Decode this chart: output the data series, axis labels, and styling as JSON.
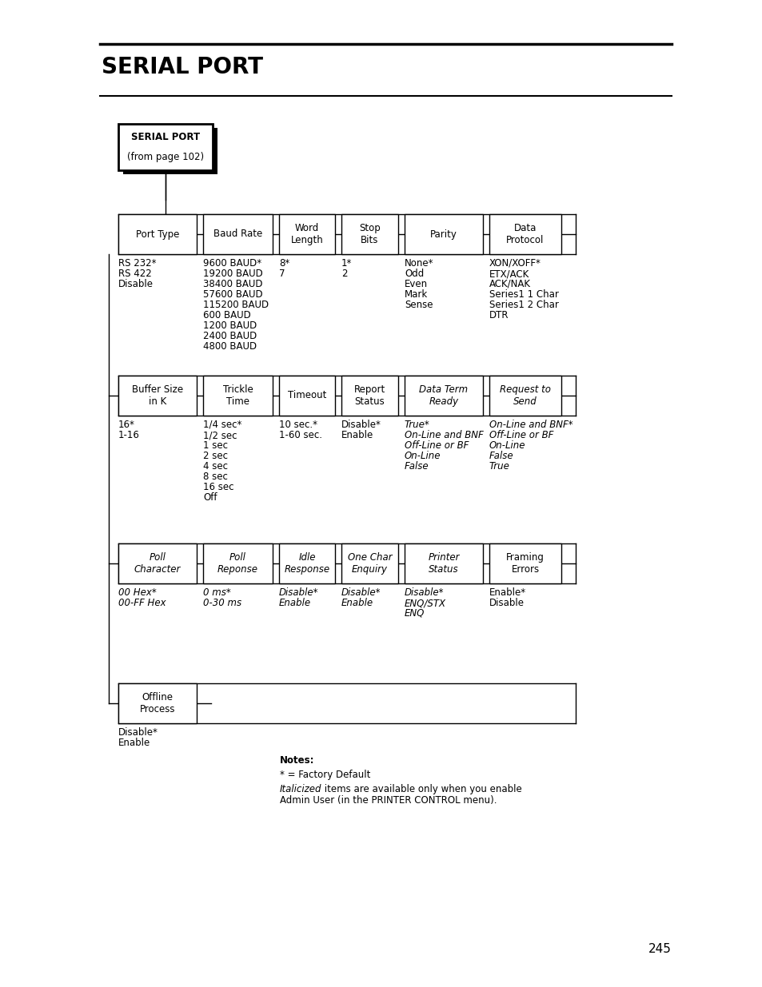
{
  "background_color": "#ffffff",
  "title": "SERIAL PORT",
  "page_number": "245",
  "row1_boxes": [
    {
      "label": "Port Type",
      "italic": false
    },
    {
      "label": "Baud Rate",
      "italic": false
    },
    {
      "label": "Word\nLength",
      "italic": false
    },
    {
      "label": "Stop\nBits",
      "italic": false
    },
    {
      "label": "Parity",
      "italic": false
    },
    {
      "label": "Data\nProtocol",
      "italic": false
    }
  ],
  "row1_values": [
    {
      "text": "RS 232*\nRS 422\nDisable",
      "italic": false
    },
    {
      "text": "9600 BAUD*\n19200 BAUD\n38400 BAUD\n57600 BAUD\n115200 BAUD\n600 BAUD\n1200 BAUD\n2400 BAUD\n4800 BAUD",
      "italic": false
    },
    {
      "text": "8*\n7",
      "italic": false
    },
    {
      "text": "1*\n2",
      "italic": false
    },
    {
      "text": "None*\nOdd\nEven\nMark\nSense",
      "italic": false
    },
    {
      "text": "XON/XOFF*\nETX/ACK\nACK/NAK\nSeries1 1 Char\nSeries1 2 Char\nDTR",
      "italic": false
    }
  ],
  "row2_boxes": [
    {
      "label": "Buffer Size\nin K",
      "italic": false
    },
    {
      "label": "Trickle\nTime",
      "italic": false
    },
    {
      "label": "Timeout",
      "italic": false
    },
    {
      "label": "Report\nStatus",
      "italic": false
    },
    {
      "label": "Data Term\nReady",
      "italic": true
    },
    {
      "label": "Request to\nSend",
      "italic": true
    }
  ],
  "row2_values": [
    {
      "text": "16*\n1-16",
      "italic": false
    },
    {
      "text": "1/4 sec*\n1/2 sec\n1 sec\n2 sec\n4 sec\n8 sec\n16 sec\nOff",
      "italic": false
    },
    {
      "text": "10 sec.*\n1-60 sec.",
      "italic": false
    },
    {
      "text": "Disable*\nEnable",
      "italic": false
    },
    {
      "text": "True*\nOn-Line and BNF\nOff-Line or BF\nOn-Line\nFalse",
      "italic": true
    },
    {
      "text": "On-Line and BNF*\nOff-Line or BF\nOn-Line\nFalse\nTrue",
      "italic": true
    }
  ],
  "row3_boxes": [
    {
      "label": "Poll\nCharacter",
      "italic": true
    },
    {
      "label": "Poll\nReponse",
      "italic": true
    },
    {
      "label": "Idle\nResponse",
      "italic": true
    },
    {
      "label": "One Char\nEnquiry",
      "italic": true
    },
    {
      "label": "Printer\nStatus",
      "italic": true
    },
    {
      "label": "Framing\nErrors",
      "italic": false
    }
  ],
  "row3_values": [
    {
      "text": "00 Hex*\n00-FF Hex",
      "italic": true
    },
    {
      "text": "0 ms*\n0-30 ms",
      "italic": true
    },
    {
      "text": "Disable*\nEnable",
      "italic": true
    },
    {
      "text": "Disable*\nEnable",
      "italic": true
    },
    {
      "text": "Disable*\nENQ/STX\nENQ",
      "italic": true
    },
    {
      "text": "Enable*\nDisable",
      "italic": false
    }
  ],
  "row4_boxes": [
    {
      "label": "Offline\nProcess",
      "italic": false
    }
  ],
  "row4_values": [
    {
      "text": "Disable*\nEnable",
      "italic": false
    }
  ]
}
